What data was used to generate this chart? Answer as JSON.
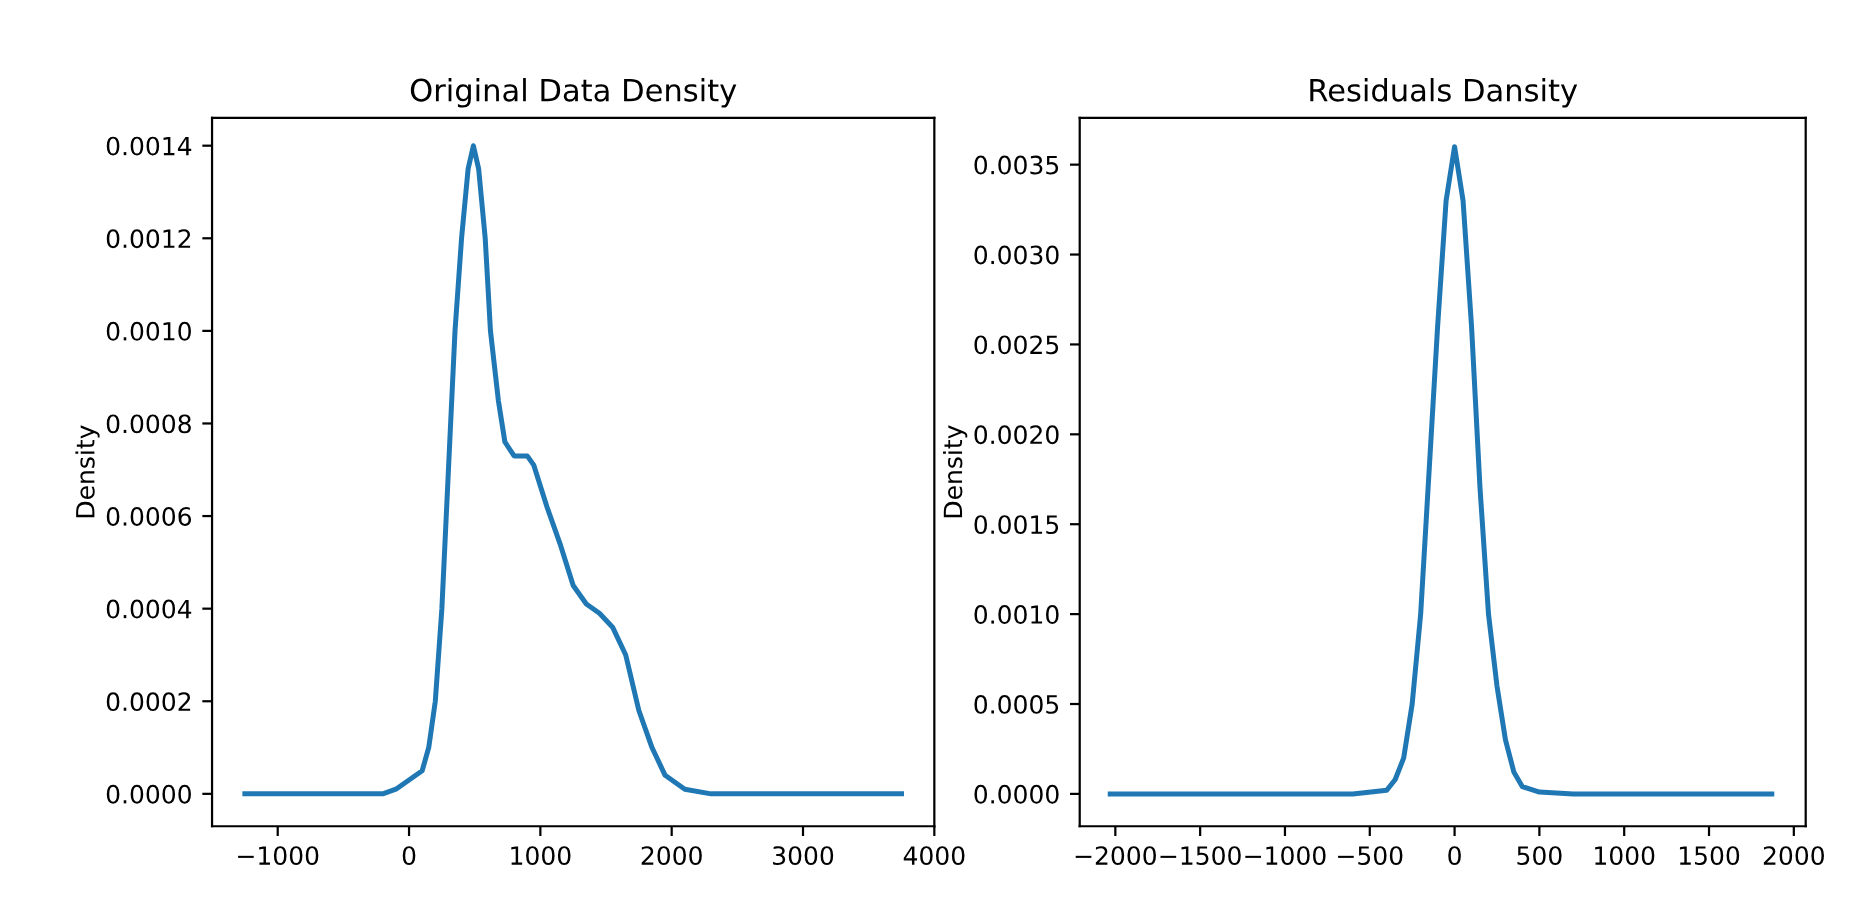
{
  "chart_data": [
    {
      "type": "line",
      "title": "Original Data Density",
      "ylabel": "Density",
      "xlim": [
        -1500,
        4000
      ],
      "ylim": [
        -7e-05,
        0.00146
      ],
      "xticks": [
        -1000,
        0,
        1000,
        2000,
        3000,
        4000
      ],
      "yticks": [
        {
          "value": 0,
          "label": "0.0000"
        },
        {
          "value": 0.0002,
          "label": "0.0002"
        },
        {
          "value": 0.0004,
          "label": "0.0004"
        },
        {
          "value": 0.0006,
          "label": "0.0006"
        },
        {
          "value": 0.0008,
          "label": "0.0008"
        },
        {
          "value": 0.001,
          "label": "0.0010"
        },
        {
          "value": 0.0012,
          "label": "0.0012"
        },
        {
          "value": 0.0014,
          "label": "0.0014"
        }
      ],
      "x": [
        -1250,
        -200,
        -100,
        0,
        100,
        150,
        200,
        250,
        300,
        350,
        400,
        450,
        490,
        530,
        580,
        620,
        680,
        730,
        800,
        900,
        950,
        1050,
        1150,
        1250,
        1350,
        1450,
        1550,
        1650,
        1750,
        1850,
        1950,
        2100,
        2300,
        3750
      ],
      "series": [
        {
          "color": "#1f77b4",
          "values": [
            0,
            0,
            1e-05,
            3e-05,
            5e-05,
            0.0001,
            0.0002,
            0.0004,
            0.0007,
            0.001,
            0.0012,
            0.00135,
            0.0014,
            0.00135,
            0.0012,
            0.001,
            0.00085,
            0.00076,
            0.00073,
            0.00073,
            0.00071,
            0.00062,
            0.00054,
            0.00045,
            0.00041,
            0.00039,
            0.00036,
            0.0003,
            0.00018,
            0.0001,
            4e-05,
            1e-05,
            0,
            0
          ]
        }
      ],
      "grid": false,
      "legend": false
    },
    {
      "type": "line",
      "title": "Residuals Dansity",
      "ylabel": "Density",
      "xlim": [
        -2210,
        2070
      ],
      "ylim": [
        -0.00018,
        0.00376
      ],
      "xticks": [
        -2000,
        -1500,
        -1000,
        -500,
        0,
        500,
        1000,
        1500,
        2000
      ],
      "yticks": [
        {
          "value": 0,
          "label": "0.0000"
        },
        {
          "value": 0.0005,
          "label": "0.0005"
        },
        {
          "value": 0.001,
          "label": "0.0010"
        },
        {
          "value": 0.0015,
          "label": "0.0015"
        },
        {
          "value": 0.002,
          "label": "0.0020"
        },
        {
          "value": 0.0025,
          "label": "0.0025"
        },
        {
          "value": 0.003,
          "label": "0.0030"
        },
        {
          "value": 0.0035,
          "label": "0.0035"
        }
      ],
      "x": [
        -2030,
        -600,
        -400,
        -350,
        -300,
        -250,
        -200,
        -150,
        -100,
        -50,
        0,
        50,
        100,
        150,
        200,
        250,
        300,
        350,
        400,
        500,
        700,
        1870
      ],
      "series": [
        {
          "color": "#1f77b4",
          "values": [
            0,
            0,
            2e-05,
            8e-05,
            0.0002,
            0.0005,
            0.001,
            0.0018,
            0.0026,
            0.0033,
            0.0036,
            0.0033,
            0.0026,
            0.0017,
            0.001,
            0.0006,
            0.0003,
            0.00012,
            4e-05,
            1e-05,
            0,
            0
          ]
        }
      ],
      "grid": false,
      "legend": false
    }
  ]
}
